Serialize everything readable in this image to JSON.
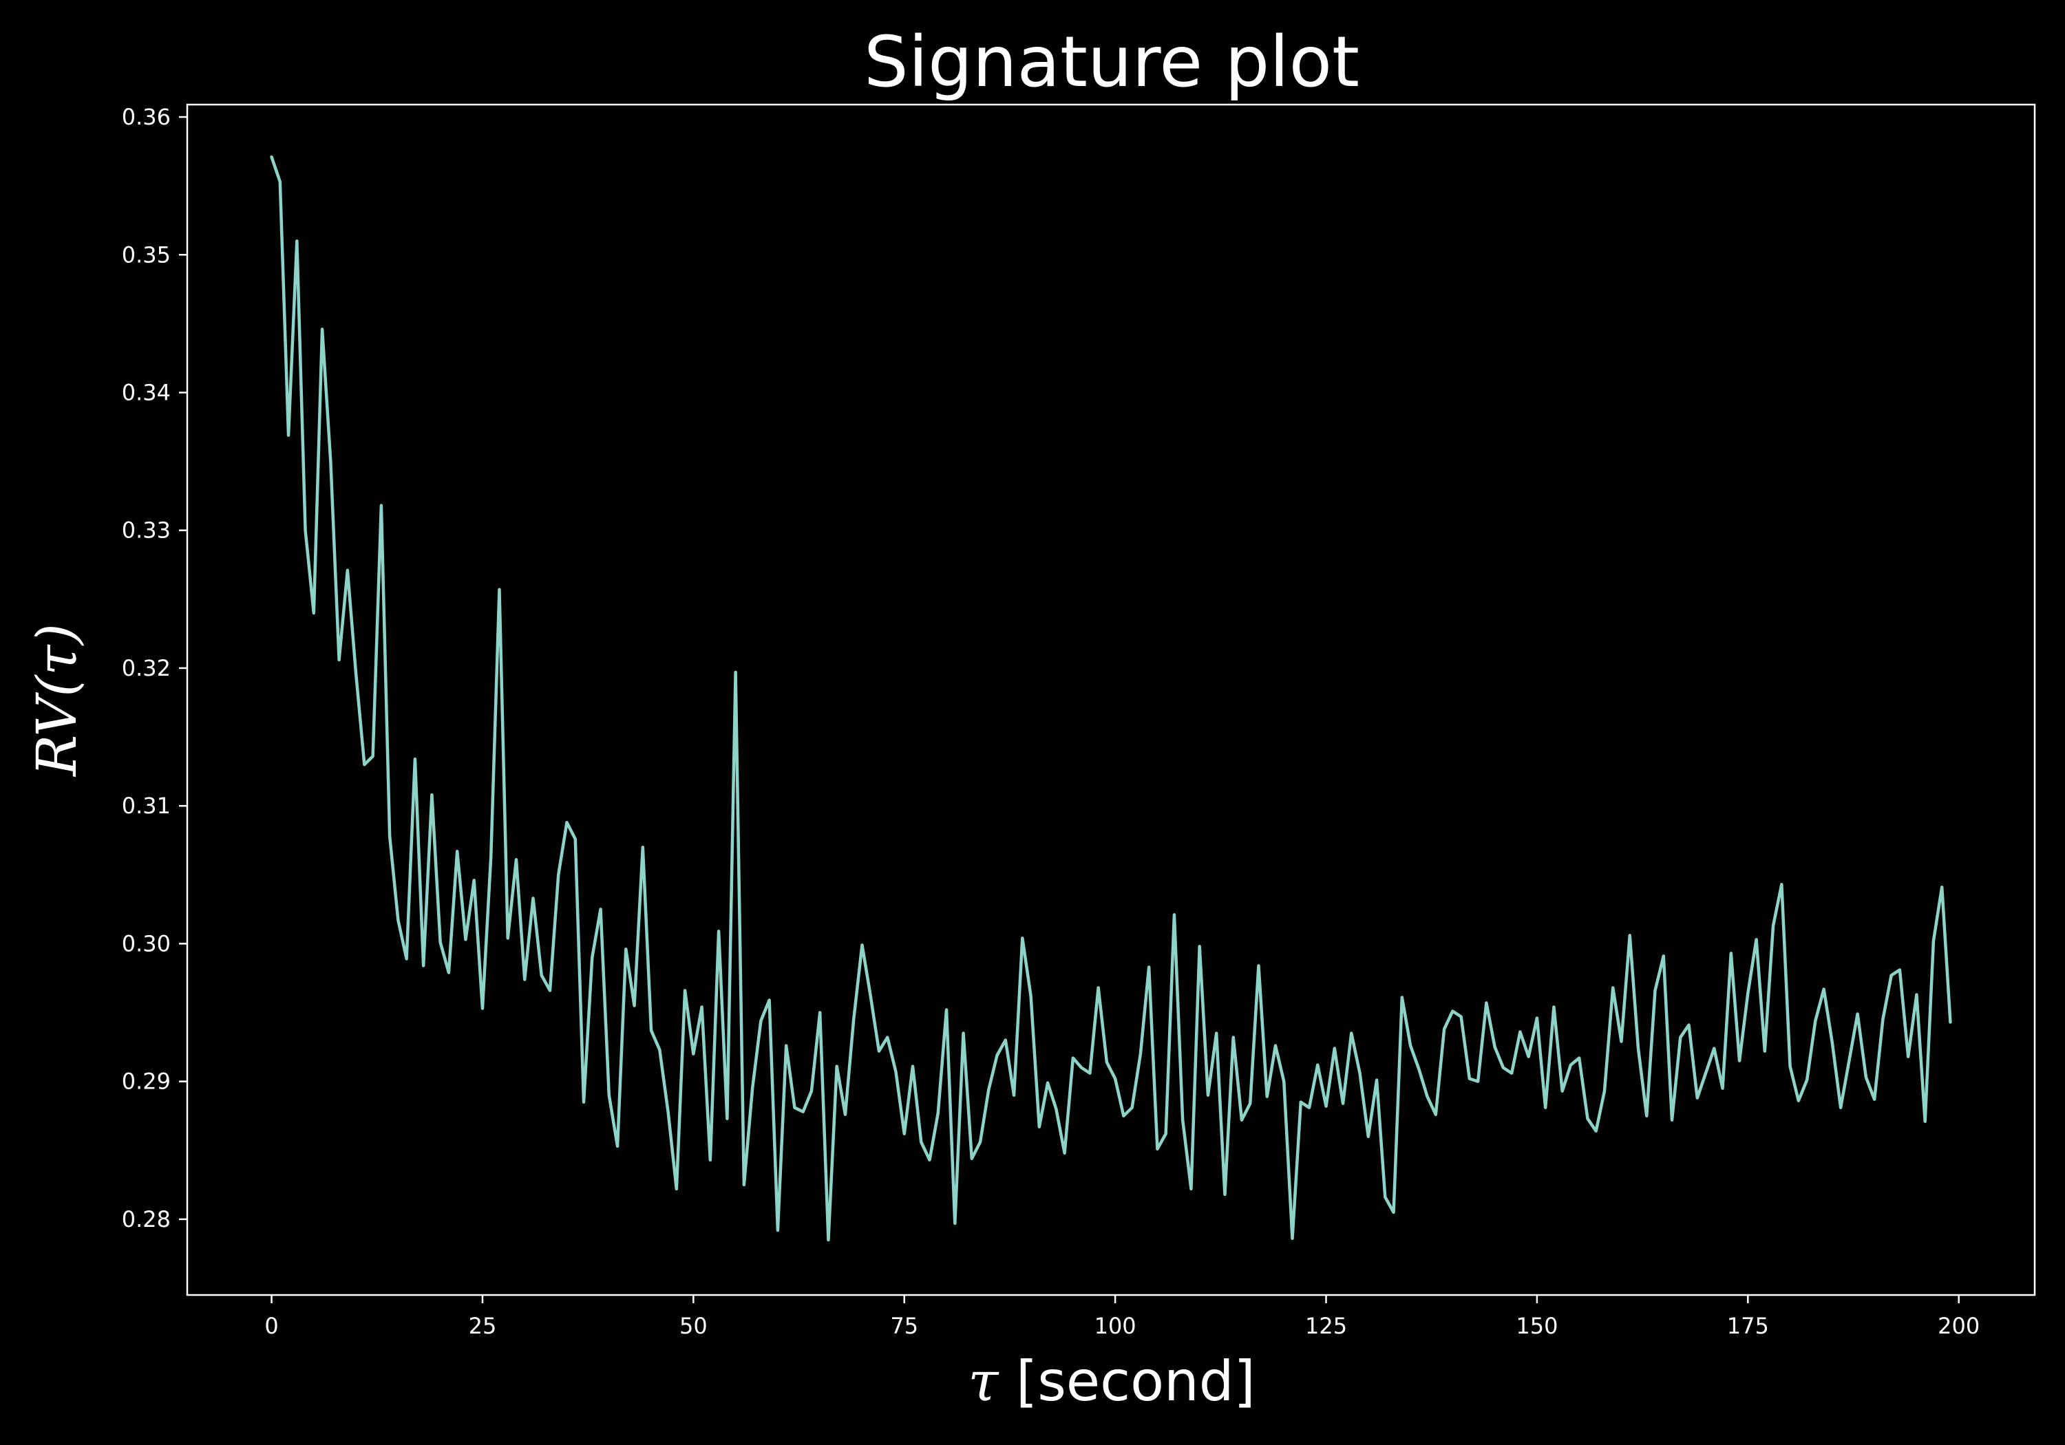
{
  "chart_data": {
    "type": "line",
    "title": "Signature plot",
    "xlabel": {
      "symbol": "τ",
      "rest": " [second]"
    },
    "ylabel": {
      "prefix": "RV(",
      "symbol": "τ",
      "suffix": ")"
    },
    "xlim": [
      -10,
      209
    ],
    "ylim": [
      0.2745,
      0.3609
    ],
    "xticks": [
      0,
      25,
      50,
      75,
      100,
      125,
      150,
      175,
      200
    ],
    "yticks": [
      0.28,
      0.29,
      0.3,
      0.31,
      0.32,
      0.33,
      0.34,
      0.35,
      0.36
    ],
    "ytick_labels": [
      "0.28",
      "0.29",
      "0.30",
      "0.31",
      "0.32",
      "0.33",
      "0.34",
      "0.35",
      "0.36"
    ],
    "grid": false,
    "colors": {
      "background": "#000000",
      "line": "#8dd3c7",
      "axes": "#ffffff",
      "text": "#ffffff"
    },
    "series": [
      {
        "x_start": 0,
        "x_step": 1,
        "values": [
          0.3571,
          0.3553,
          0.3369,
          0.351,
          0.33,
          0.324,
          0.3446,
          0.335,
          0.3206,
          0.3271,
          0.3196,
          0.313,
          0.3136,
          0.3318,
          0.3078,
          0.3017,
          0.2989,
          0.3134,
          0.2984,
          0.3108,
          0.3001,
          0.2979,
          0.3067,
          0.3003,
          0.3046,
          0.2953,
          0.3063,
          0.3257,
          0.3004,
          0.3061,
          0.2974,
          0.3033,
          0.2977,
          0.2966,
          0.305,
          0.3088,
          0.3076,
          0.2885,
          0.299,
          0.3025,
          0.289,
          0.2853,
          0.2996,
          0.2955,
          0.307,
          0.2937,
          0.2923,
          0.2878,
          0.2822,
          0.2966,
          0.292,
          0.2954,
          0.2843,
          0.3009,
          0.2873,
          0.3197,
          0.2825,
          0.2895,
          0.2944,
          0.2959,
          0.2792,
          0.2926,
          0.2881,
          0.2878,
          0.2893,
          0.295,
          0.2785,
          0.2911,
          0.2876,
          0.2945,
          0.2999,
          0.2962,
          0.2922,
          0.2932,
          0.2907,
          0.2862,
          0.2911,
          0.2856,
          0.2843,
          0.2877,
          0.2952,
          0.2797,
          0.2935,
          0.2844,
          0.2856,
          0.2894,
          0.2919,
          0.293,
          0.289,
          0.3004,
          0.2962,
          0.2867,
          0.2899,
          0.288,
          0.2848,
          0.2917,
          0.291,
          0.2906,
          0.2968,
          0.2914,
          0.2902,
          0.2875,
          0.2881,
          0.292,
          0.2983,
          0.2851,
          0.2862,
          0.3021,
          0.2872,
          0.2822,
          0.2998,
          0.289,
          0.2935,
          0.2818,
          0.2932,
          0.2872,
          0.2884,
          0.2984,
          0.2889,
          0.2926,
          0.29,
          0.2786,
          0.2885,
          0.2881,
          0.2912,
          0.2882,
          0.2924,
          0.2884,
          0.2935,
          0.2906,
          0.286,
          0.2901,
          0.2816,
          0.2805,
          0.2961,
          0.2926,
          0.2909,
          0.2889,
          0.2876,
          0.2938,
          0.2951,
          0.2947,
          0.2902,
          0.29,
          0.2957,
          0.2925,
          0.291,
          0.2906,
          0.2936,
          0.2918,
          0.2946,
          0.2881,
          0.2954,
          0.2893,
          0.2912,
          0.2917,
          0.2873,
          0.2864,
          0.2893,
          0.2968,
          0.2929,
          0.3006,
          0.2924,
          0.2875,
          0.2966,
          0.2991,
          0.2872,
          0.2932,
          0.2941,
          0.2888,
          0.2906,
          0.2924,
          0.2895,
          0.2993,
          0.2915,
          0.2964,
          0.3003,
          0.2922,
          0.3013,
          0.3043,
          0.2911,
          0.2886,
          0.2901,
          0.2944,
          0.2967,
          0.2928,
          0.2881,
          0.2915,
          0.2949,
          0.2903,
          0.2887,
          0.2945,
          0.2977,
          0.2981,
          0.2918,
          0.2963,
          0.2871,
          0.3002,
          0.3041,
          0.2943
        ]
      }
    ]
  }
}
